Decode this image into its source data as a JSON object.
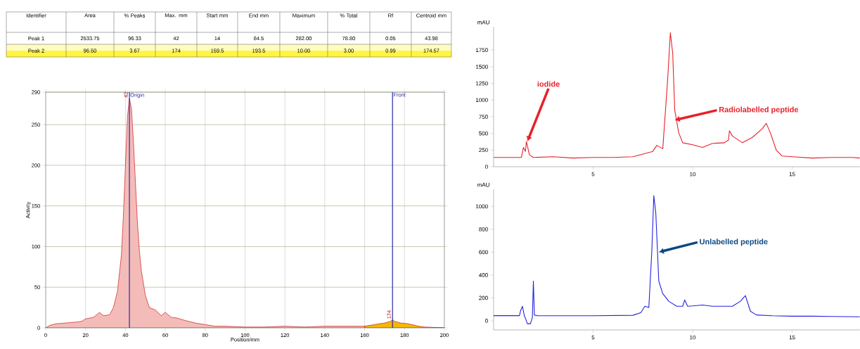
{
  "chart_data": [
    {
      "type": "other",
      "categories": [
        "Identifier",
        "Area",
        "% Peaks",
        "Max. mm",
        "Start mm",
        "End mm",
        "Maximum",
        "% Total",
        "Rf",
        "Centroid mm"
      ],
      "cell_labels": [
        [
          "Peak 1",
          "2533.75",
          "96.33",
          "42",
          "14",
          "84.5",
          "282.00",
          "78.80",
          "0.05",
          "43.98"
        ],
        [
          "Peak 2",
          "96.50",
          "3.67",
          "174",
          "159.5",
          "193.5",
          "10.00",
          "3.00",
          "0.99",
          "174.57"
        ]
      ]
    },
    {
      "type": "area",
      "xlabel": "Position/mm",
      "ylabel": "Activity",
      "xlim": [
        0,
        200
      ],
      "ylim": [
        0,
        290
      ],
      "xticks": [
        0,
        20,
        40,
        60,
        80,
        100,
        120,
        140,
        160,
        180,
        200
      ],
      "yticks": [
        0,
        50,
        100,
        150,
        200,
        250,
        290
      ],
      "grid": true,
      "series": [
        {
          "color": "#f4bcb8",
          "x": [
            0,
            2,
            5,
            10,
            15,
            18,
            20,
            24,
            27,
            29,
            32,
            34,
            36,
            38,
            39,
            40,
            41,
            42,
            43,
            44,
            45,
            46,
            47,
            48,
            50,
            52,
            55,
            58,
            60,
            63,
            66,
            70,
            75,
            80,
            85,
            90,
            100,
            110,
            120,
            130,
            140,
            150,
            160
          ],
          "values": [
            0,
            3,
            5,
            6,
            7,
            8,
            11,
            13,
            19,
            15,
            16,
            25,
            45,
            90,
            140,
            200,
            260,
            282,
            270,
            230,
            180,
            130,
            95,
            70,
            40,
            25,
            22,
            15,
            19,
            13,
            12,
            9,
            6,
            4,
            2,
            2,
            1,
            1,
            2,
            1,
            2,
            2,
            2
          ]
        },
        {
          "color": "#f5b800",
          "x": [
            160,
            165,
            170,
            173,
            174,
            175,
            178,
            182,
            187,
            190,
            200
          ],
          "values": [
            2,
            4,
            6,
            8,
            10,
            8,
            6,
            5,
            2,
            1,
            0
          ]
        }
      ],
      "ref_lines": [
        {
          "axis": "x",
          "value": 42,
          "label": "Origin",
          "color": "#2a2aa8"
        },
        {
          "axis": "x",
          "value": 174,
          "label": "Front",
          "color": "#2a2aa8"
        }
      ],
      "annotations": [
        {
          "text": "42",
          "x": 42,
          "y": 282
        },
        {
          "text": "174",
          "x": 174,
          "y": 10
        }
      ]
    },
    {
      "type": "line",
      "ylabel": "mAU",
      "xlim": [
        0,
        18.4
      ],
      "ylim": [
        0,
        2100
      ],
      "xticks": [
        5,
        10,
        15
      ],
      "yticks": [
        0,
        250,
        500,
        750,
        1000,
        1250,
        1500,
        1750
      ],
      "series": [
        {
          "color": "#e8202a",
          "x": [
            0,
            1.4,
            1.5,
            1.6,
            1.65,
            1.8,
            2,
            3,
            4,
            5,
            6,
            7,
            8,
            8.2,
            8.5,
            8.75,
            8.88,
            9.0,
            9.1,
            9.3,
            9.5,
            10,
            10.5,
            11,
            11.6,
            11.8,
            11.85,
            12.0,
            12.5,
            13,
            13.5,
            13.7,
            13.9,
            14.2,
            14.5,
            15,
            16,
            17,
            18,
            18.4
          ],
          "values": [
            140,
            140,
            290,
            230,
            380,
            180,
            140,
            150,
            130,
            140,
            140,
            150,
            230,
            320,
            270,
            1330,
            2010,
            1700,
            850,
            510,
            360,
            330,
            290,
            350,
            360,
            400,
            540,
            460,
            360,
            440,
            570,
            650,
            510,
            250,
            160,
            150,
            130,
            140,
            140,
            130
          ]
        }
      ],
      "annotations": [
        {
          "text": "iodide",
          "x": 1.7,
          "y": 380
        },
        {
          "text": "Radiolabelled peptide",
          "x": 9.1,
          "y": 700
        }
      ]
    },
    {
      "type": "line",
      "ylabel": "mAU",
      "xlim": [
        0,
        18.4
      ],
      "ylim": [
        -80,
        1150
      ],
      "xticks": [
        5,
        10,
        15
      ],
      "yticks": [
        0,
        200,
        400,
        600,
        800,
        1000
      ],
      "series": [
        {
          "color": "#2323e0",
          "x": [
            0,
            1.3,
            1.35,
            1.45,
            1.55,
            1.6,
            1.7,
            1.85,
            1.95,
            2.0,
            2.05,
            2.2,
            5,
            7,
            7.4,
            7.6,
            7.8,
            7.95,
            8.05,
            8.15,
            8.3,
            8.5,
            8.8,
            9.2,
            9.5,
            9.6,
            9.75,
            10,
            10.5,
            11,
            12,
            12.4,
            12.65,
            12.9,
            13.2,
            14,
            15,
            16,
            17,
            18.4
          ],
          "values": [
            45,
            45,
            84,
            127,
            40,
            22,
            -26,
            -26,
            29,
            347,
            51,
            44,
            44,
            48,
            72,
            127,
            116,
            611,
            1094,
            940,
            347,
            237,
            171,
            127,
            127,
            182,
            127,
            130,
            138,
            127,
            127,
            171,
            220,
            84,
            51,
            44,
            40,
            40,
            38,
            35
          ]
        }
      ],
      "annotations": [
        {
          "text": "Unlabelled peptide",
          "x": 8.3,
          "y": 600
        }
      ]
    }
  ]
}
